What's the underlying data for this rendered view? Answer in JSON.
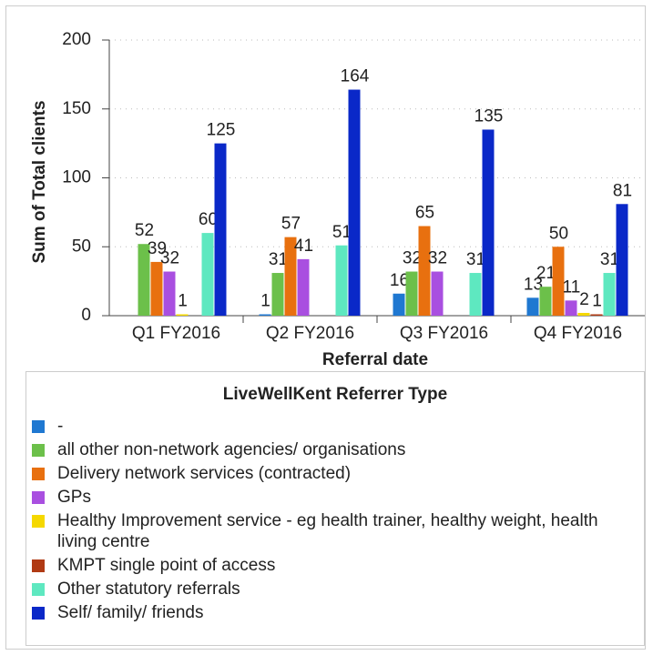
{
  "chart_data": {
    "type": "bar",
    "x_label": "Referral date",
    "y_label": "Sum of Total clients",
    "legend_title": "LiveWellKent Referrer Type",
    "categories": [
      "Q1 FY2016",
      "Q2 FY2016",
      "Q3 FY2016",
      "Q4 FY2016"
    ],
    "ylim": [
      0,
      200
    ],
    "yticks": [
      0,
      50,
      100,
      150,
      200
    ],
    "grid": true,
    "series": [
      {
        "name": "-",
        "color": "#1f78d1",
        "values": [
          null,
          1,
          16,
          13
        ]
      },
      {
        "name": "all other non-network agencies/ organisations",
        "color": "#6cc04a",
        "values": [
          52,
          31,
          32,
          21
        ]
      },
      {
        "name": "Delivery network services (contracted)",
        "color": "#e8700f",
        "values": [
          39,
          57,
          65,
          50
        ]
      },
      {
        "name": "GPs",
        "color": "#a94fe0",
        "values": [
          32,
          41,
          32,
          11
        ]
      },
      {
        "name": "Healthy Improvement service - eg health trainer, healthy weight, health living centre",
        "color": "#f5d800",
        "values": [
          1,
          null,
          null,
          2
        ]
      },
      {
        "name": "KMPT single point of access",
        "color": "#b03a14",
        "values": [
          null,
          null,
          null,
          1
        ]
      },
      {
        "name": "Other statutory referrals",
        "color": "#5ee8c0",
        "values": [
          60,
          51,
          31,
          31
        ]
      },
      {
        "name": "Self/ family/ friends",
        "color": "#0a28c8",
        "values": [
          125,
          164,
          135,
          81
        ]
      }
    ]
  }
}
